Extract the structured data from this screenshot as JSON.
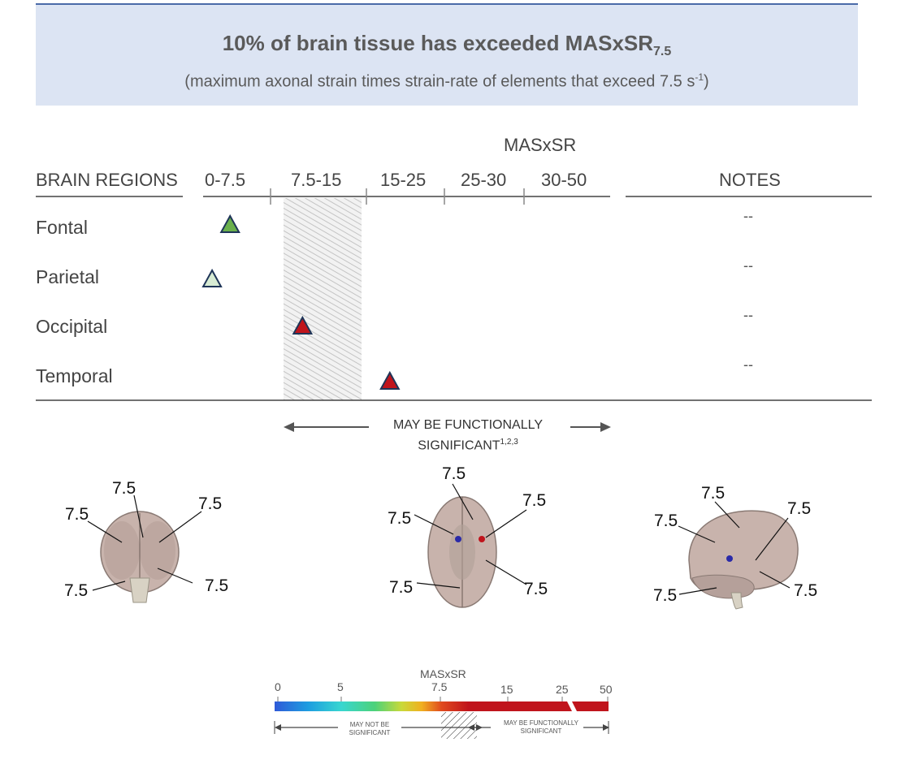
{
  "banner": {
    "title_main": "10% of brain tissue has exceeded MASxSR",
    "title_sub": "7.5",
    "subtitle_main": "(maximum axonal strain times strain-rate of elements that exceed 7.5 s",
    "subtitle_sup": "-1",
    "subtitle_end": ")"
  },
  "table": {
    "metric_header": "MASxSR",
    "regions_header": "BRAIN REGIONS",
    "notes_header": "NOTES",
    "bins": [
      "0-7.5",
      "7.5-15",
      "15-25",
      "25-30",
      "30-50"
    ]
  },
  "significance": {
    "label": "MAY BE FUNCTIONALLY",
    "label2": "SIGNIFICANT",
    "sup": "1,2,3"
  },
  "brain_views": {
    "front": [
      "7.5",
      "7.5",
      "7.5",
      "7.5",
      "7.5"
    ],
    "top": [
      "7.5",
      "7.5",
      "7.5",
      "7.5",
      "7.5"
    ],
    "side": [
      "7.5",
      "7.5",
      "7.5",
      "7.5",
      "7.5"
    ]
  },
  "colorbar": {
    "title": "MASxSR",
    "ticks": [
      "0",
      "5",
      "7.5",
      "15",
      "25",
      "50"
    ],
    "left_label": "MAY NOT BE",
    "left_label2": "SIGNIFICANT",
    "right_label": "MAY BE FUNCTIONALLY",
    "right_label2": "SIGNIFICANT"
  },
  "chart_data": {
    "type": "scatter",
    "title": "10% of brain tissue has exceeded MASxSR7.5",
    "xlabel": "MASxSR",
    "ylabel": "BRAIN REGIONS",
    "x_bins": [
      "0-7.5",
      "7.5-15",
      "15-25",
      "25-30",
      "30-50"
    ],
    "shaded_range": "7.5-15",
    "points": [
      {
        "region": "Fontal",
        "value": 3,
        "color": "#6ab04c",
        "note": "--"
      },
      {
        "region": "Parietal",
        "value": 1,
        "color": "#d8ecd4",
        "note": "--"
      },
      {
        "region": "Occipital",
        "value": 10,
        "color": "#c0141c",
        "note": "--"
      },
      {
        "region": "Temporal",
        "value": 18,
        "color": "#c0141c",
        "note": "--"
      }
    ]
  }
}
